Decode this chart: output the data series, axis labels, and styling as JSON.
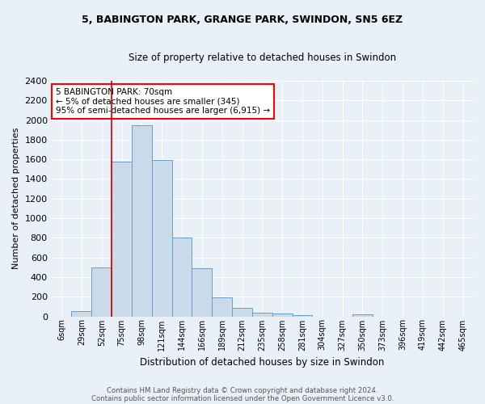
{
  "title1": "5, BABINGTON PARK, GRANGE PARK, SWINDON, SN5 6EZ",
  "title2": "Size of property relative to detached houses in Swindon",
  "xlabel": "Distribution of detached houses by size in Swindon",
  "ylabel": "Number of detached properties",
  "footnote1": "Contains HM Land Registry data © Crown copyright and database right 2024.",
  "footnote2": "Contains public sector information licensed under the Open Government Licence v3.0.",
  "bar_labels": [
    "6sqm",
    "29sqm",
    "52sqm",
    "75sqm",
    "98sqm",
    "121sqm",
    "144sqm",
    "166sqm",
    "189sqm",
    "212sqm",
    "235sqm",
    "258sqm",
    "281sqm",
    "304sqm",
    "327sqm",
    "350sqm",
    "373sqm",
    "396sqm",
    "419sqm",
    "442sqm",
    "465sqm"
  ],
  "bar_values": [
    0,
    55,
    500,
    1580,
    1950,
    1590,
    800,
    490,
    190,
    90,
    35,
    30,
    15,
    0,
    0,
    20,
    0,
    0,
    0,
    0,
    0
  ],
  "bar_color": "#c9daea",
  "bar_edgecolor": "#6b9fc8",
  "ylim": [
    0,
    2400
  ],
  "yticks": [
    0,
    200,
    400,
    600,
    800,
    1000,
    1200,
    1400,
    1600,
    1800,
    2000,
    2200,
    2400
  ],
  "vline_x": 2.5,
  "vline_color": "#cc0000",
  "annotation_text": "5 BABINGTON PARK: 70sqm\n← 5% of detached houses are smaller (345)\n95% of semi-detached houses are larger (6,915) →",
  "background_color": "#eaf0f8",
  "grid_color": "#ffffff"
}
